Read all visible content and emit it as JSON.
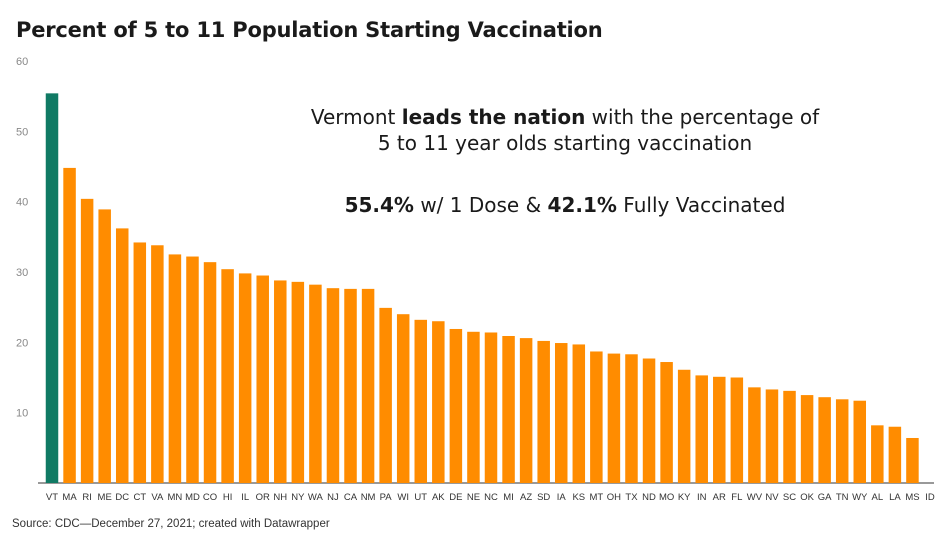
{
  "chart_data": {
    "type": "bar",
    "title": "Percent of 5 to 11 Population Starting Vaccination",
    "xlabel": "",
    "ylabel": "",
    "ylim": [
      0,
      60
    ],
    "yticks": [
      10,
      20,
      30,
      40,
      50,
      60
    ],
    "grid": false,
    "categories": [
      "VT",
      "MA",
      "RI",
      "ME",
      "DC",
      "CT",
      "VA",
      "MN",
      "MD",
      "CO",
      "HI",
      "IL",
      "OR",
      "NH",
      "NY",
      "WA",
      "NJ",
      "CA",
      "NM",
      "PA",
      "WI",
      "UT",
      "AK",
      "DE",
      "NE",
      "NC",
      "MI",
      "AZ",
      "SD",
      "IA",
      "KS",
      "MT",
      "OH",
      "TX",
      "ND",
      "MO",
      "KY",
      "IN",
      "AR",
      "FL",
      "WV",
      "NV",
      "SC",
      "OK",
      "GA",
      "TN",
      "WY",
      "AL",
      "LA",
      "MS",
      "ID"
    ],
    "values": [
      55.4,
      44.8,
      40.4,
      38.9,
      36.2,
      34.2,
      33.8,
      32.5,
      32.2,
      31.4,
      30.4,
      29.8,
      29.5,
      28.8,
      28.6,
      28.2,
      27.7,
      27.6,
      27.6,
      24.9,
      24.0,
      23.2,
      23.0,
      21.9,
      21.5,
      21.4,
      20.9,
      20.6,
      20.2,
      19.9,
      19.7,
      18.7,
      18.4,
      18.3,
      17.7,
      17.2,
      16.1,
      15.3,
      15.1,
      15.0,
      13.6,
      13.3,
      13.1,
      12.5,
      12.2,
      11.9,
      11.7,
      8.2,
      8.0,
      6.4,
      null
    ],
    "highlight": {
      "category": "VT",
      "color": "#107a64"
    },
    "bar_color": "#ff8c00",
    "annotation": {
      "line1_pre": "Vermont ",
      "line1_bold": "leads the nation",
      "line1_post": " with the percentage of",
      "line2": "5 to 11 year olds starting vaccination",
      "stat1_bold": "55.4%",
      "stat1_text": " w/ 1 Dose & ",
      "stat2_bold": "42.1%",
      "stat2_text": " Fully Vaccinated"
    },
    "source": "Source: CDC—December 27, 2021; created with Datawrapper"
  }
}
